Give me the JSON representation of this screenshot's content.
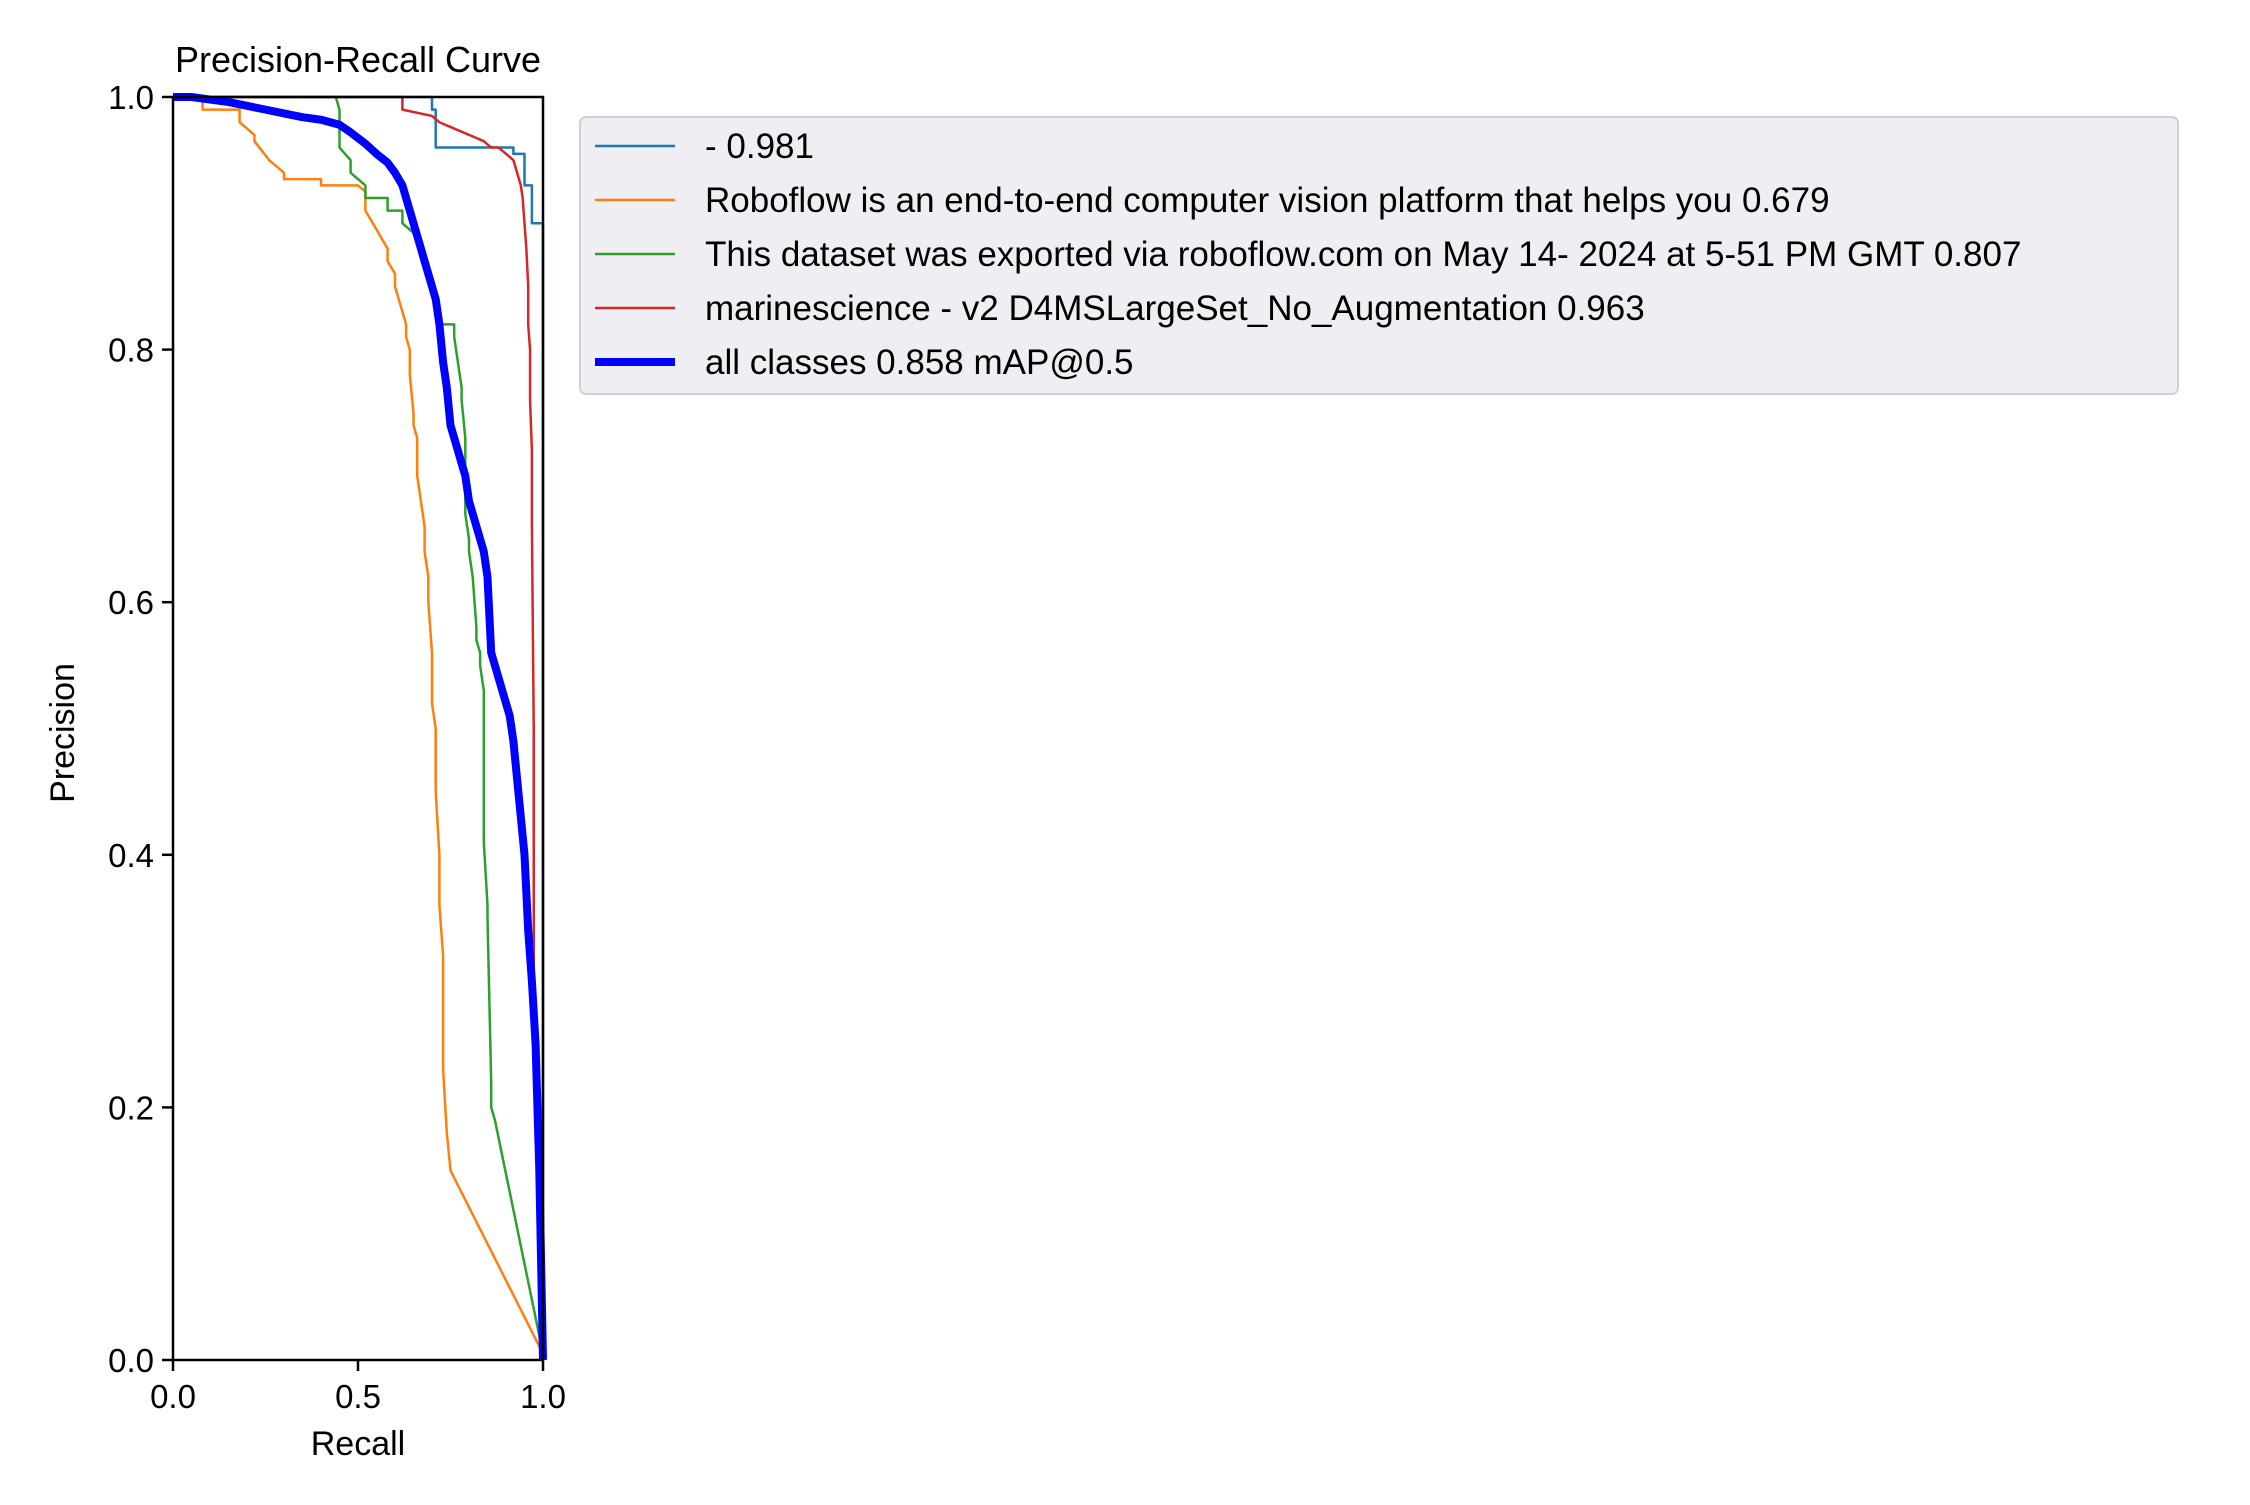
{
  "chart_data": {
    "type": "line",
    "title": "Precision-Recall Curve",
    "xlabel": "Recall",
    "ylabel": "Precision",
    "xlim": [
      0,
      1
    ],
    "ylim": [
      0,
      1
    ],
    "xticks": [
      "0.0",
      "0.5",
      "1.0"
    ],
    "yticks": [
      "0.0",
      "0.2",
      "0.4",
      "0.6",
      "0.8",
      "1.0"
    ],
    "grid": false,
    "legend_position": "outside-right-top",
    "series": [
      {
        "name": "- 0.981",
        "color": "#1f77b4",
        "width": "thin",
        "x": [
          0,
          0.7,
          0.7,
          0.71,
          0.71,
          0.92,
          0.92,
          0.95,
          0.95,
          0.97,
          0.97,
          1.0,
          1.0
        ],
        "y": [
          1.0,
          1.0,
          0.99,
          0.99,
          0.96,
          0.96,
          0.955,
          0.955,
          0.93,
          0.93,
          0.9,
          0.9,
          0.0
        ]
      },
      {
        "name": "Roboflow is an end-to-end computer vision platform that helps you 0.679",
        "color": "#ff7f0e",
        "width": "thin",
        "x": [
          0,
          0.05,
          0.08,
          0.08,
          0.18,
          0.18,
          0.22,
          0.22,
          0.26,
          0.28,
          0.3,
          0.3,
          0.32,
          0.34,
          0.4,
          0.4,
          0.45,
          0.5,
          0.52,
          0.52,
          0.54,
          0.56,
          0.58,
          0.58,
          0.6,
          0.6,
          0.61,
          0.62,
          0.63,
          0.63,
          0.64,
          0.64,
          0.65,
          0.65,
          0.66,
          0.66,
          0.67,
          0.68,
          0.68,
          0.69,
          0.69,
          0.7,
          0.7,
          0.71,
          0.71,
          0.72,
          0.72,
          0.73,
          0.73,
          0.74,
          0.75,
          1.0
        ],
        "y": [
          1.0,
          1.0,
          1.0,
          0.99,
          0.99,
          0.98,
          0.97,
          0.965,
          0.95,
          0.945,
          0.94,
          0.935,
          0.935,
          0.935,
          0.935,
          0.93,
          0.93,
          0.93,
          0.925,
          0.91,
          0.9,
          0.89,
          0.88,
          0.87,
          0.86,
          0.85,
          0.84,
          0.83,
          0.82,
          0.81,
          0.8,
          0.78,
          0.75,
          0.74,
          0.73,
          0.7,
          0.68,
          0.66,
          0.64,
          0.62,
          0.6,
          0.56,
          0.52,
          0.5,
          0.45,
          0.4,
          0.36,
          0.32,
          0.23,
          0.18,
          0.15,
          0.005
        ]
      },
      {
        "name": "This dataset was exported via roboflow.com on May 14- 2024 at 5-51 PM GMT 0.807",
        "color": "#2ca02c",
        "width": "thin",
        "x": [
          0,
          0.44,
          0.45,
          0.45,
          0.48,
          0.48,
          0.52,
          0.52,
          0.58,
          0.58,
          0.62,
          0.62,
          0.66,
          0.68,
          0.7,
          0.72,
          0.72,
          0.76,
          0.76,
          0.78,
          0.78,
          0.79,
          0.79,
          0.8,
          0.8,
          0.81,
          0.82,
          0.82,
          0.83,
          0.83,
          0.84,
          0.84,
          0.85,
          0.85,
          0.86,
          0.86,
          0.87,
          0.87,
          1.0
        ],
        "y": [
          1.0,
          1.0,
          0.99,
          0.96,
          0.95,
          0.94,
          0.93,
          0.92,
          0.92,
          0.91,
          0.91,
          0.9,
          0.89,
          0.87,
          0.85,
          0.83,
          0.82,
          0.82,
          0.81,
          0.77,
          0.76,
          0.73,
          0.67,
          0.65,
          0.64,
          0.62,
          0.58,
          0.57,
          0.56,
          0.55,
          0.53,
          0.41,
          0.36,
          0.35,
          0.22,
          0.2,
          0.19,
          0.19,
          0.005
        ]
      },
      {
        "name": "marinescience - v2 D4MSLargeSet_No_Augmentation 0.963",
        "color": "#d62728",
        "width": "thin",
        "x": [
          0,
          0.62,
          0.62,
          0.7,
          0.72,
          0.76,
          0.8,
          0.84,
          0.86,
          0.88,
          0.9,
          0.92,
          0.93,
          0.94,
          0.945,
          0.95,
          0.955,
          0.96,
          0.96,
          0.965,
          0.965,
          0.97,
          0.97,
          0.975,
          0.975,
          1.0
        ],
        "y": [
          1.0,
          1.0,
          0.99,
          0.985,
          0.98,
          0.975,
          0.97,
          0.965,
          0.96,
          0.96,
          0.955,
          0.95,
          0.94,
          0.93,
          0.92,
          0.9,
          0.88,
          0.85,
          0.82,
          0.8,
          0.76,
          0.72,
          0.66,
          0.5,
          0.3,
          0.0
        ]
      },
      {
        "name": "all classes 0.858 mAP@0.5",
        "color": "#0000ff",
        "width": "thick",
        "x": [
          0.0,
          0.05,
          0.1,
          0.15,
          0.2,
          0.25,
          0.3,
          0.35,
          0.4,
          0.45,
          0.48,
          0.52,
          0.55,
          0.58,
          0.6,
          0.62,
          0.63,
          0.64,
          0.65,
          0.66,
          0.67,
          0.68,
          0.69,
          0.7,
          0.71,
          0.72,
          0.73,
          0.74,
          0.75,
          0.76,
          0.77,
          0.78,
          0.79,
          0.8,
          0.81,
          0.82,
          0.83,
          0.84,
          0.85,
          0.86,
          0.87,
          0.88,
          0.89,
          0.9,
          0.91,
          0.92,
          0.93,
          0.94,
          0.95,
          0.96,
          0.97,
          0.98,
          0.99,
          1.0
        ],
        "y": [
          1.0,
          1.0,
          0.998,
          0.996,
          0.993,
          0.99,
          0.987,
          0.984,
          0.982,
          0.978,
          0.972,
          0.963,
          0.955,
          0.948,
          0.94,
          0.93,
          0.92,
          0.91,
          0.9,
          0.89,
          0.88,
          0.87,
          0.86,
          0.85,
          0.84,
          0.82,
          0.79,
          0.77,
          0.74,
          0.73,
          0.72,
          0.71,
          0.7,
          0.68,
          0.67,
          0.66,
          0.65,
          0.64,
          0.62,
          0.56,
          0.55,
          0.54,
          0.53,
          0.52,
          0.51,
          0.49,
          0.46,
          0.43,
          0.4,
          0.34,
          0.3,
          0.25,
          0.15,
          0.0
        ]
      }
    ]
  }
}
